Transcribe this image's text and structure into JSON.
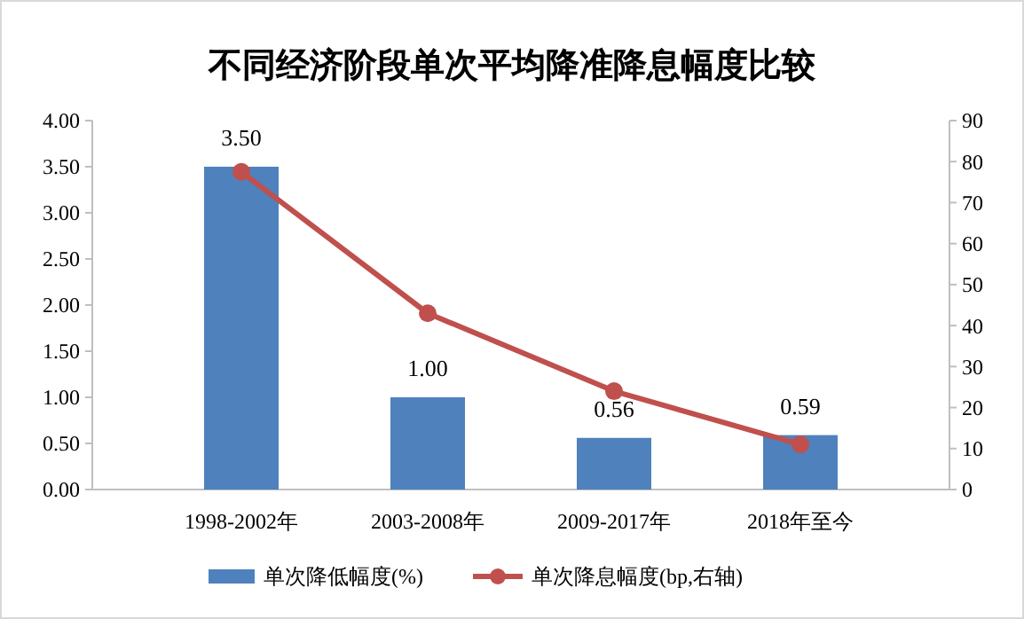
{
  "chart_data": {
    "type": "bar",
    "title": "不同经济阶段单次平均降准降息幅度比较",
    "categories": [
      "1998-2002年",
      "2003-2008年",
      "2009-2017年",
      "2018年至今"
    ],
    "series": [
      {
        "name": "单次降低幅度(%)",
        "color": "#4f81bd",
        "values": [
          3.5,
          1.0,
          0.56,
          0.59
        ],
        "value_labels": [
          "3.50",
          "1.00",
          "0.56",
          "0.59"
        ]
      },
      {
        "name": "单次降息幅度(bp,右轴)",
        "type": "line",
        "axis": "y2",
        "color": "#c0504d",
        "values": [
          77.5,
          43,
          24,
          11
        ],
        "marker": "circle"
      }
    ],
    "ylim": [
      0,
      4
    ],
    "yticks": [
      {
        "value": 0,
        "label": "0.00"
      },
      {
        "value": 0.5,
        "label": "0.50"
      },
      {
        "value": 1,
        "label": "1.00"
      },
      {
        "value": 1.5,
        "label": "1.50"
      },
      {
        "value": 2,
        "label": "2.00"
      },
      {
        "value": 2.5,
        "label": "2.50"
      },
      {
        "value": 3,
        "label": "3.00"
      },
      {
        "value": 3.5,
        "label": "3.50"
      },
      {
        "value": 4,
        "label": "4.00"
      }
    ],
    "y2lim": [
      0,
      90
    ],
    "y2ticks": [
      0,
      10,
      20,
      30,
      40,
      50,
      60,
      70,
      80,
      90
    ],
    "legend": "bottom",
    "grid": false
  }
}
